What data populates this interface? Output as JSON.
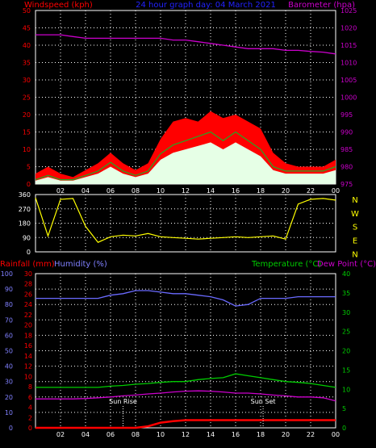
{
  "header": {
    "left_label": "Windspeed (kph)",
    "center_label": "24 hour graph day: 04 March 2021",
    "right_label": "Barometer (hpa)"
  },
  "bottom_header": {
    "rain_label": "Rainfall (mm)",
    "humidity_label": "Humidity (%)",
    "temp_label": "Temperature (°C)",
    "dew_label": "Dew Point (°C)"
  },
  "colors": {
    "rain": "#ff0000",
    "humidity": "#6a6aff",
    "temp": "#00cc00",
    "dew": "#cc00cc",
    "pressure": "#cc00cc",
    "gust": "#ff0000",
    "avg_wind": "#22aa22",
    "wind_fill": "#e6ffe6",
    "direction": "#ffff00",
    "axis_left": "#ff0000",
    "axis_right": "#cc00cc",
    "axis_green": "#00cc00",
    "axis_blue": "#8080ff",
    "grid": "#ffffff"
  },
  "x_ticks": [
    "02",
    "04",
    "06",
    "08",
    "10",
    "12",
    "14",
    "16",
    "18",
    "20",
    "22",
    "00"
  ],
  "wind_chart": {
    "type": "line",
    "left_ticks": [
      "0",
      "5",
      "10",
      "15",
      "20",
      "25",
      "30",
      "35",
      "40",
      "45",
      "50"
    ],
    "right_ticks": [
      "975",
      "980",
      "985",
      "990",
      "995",
      "1000",
      "1005",
      "1010",
      "1015",
      "1020",
      "1025"
    ],
    "ylim": [
      0,
      50
    ],
    "pressure_ylim": [
      975,
      1025
    ],
    "hours": [
      0,
      1,
      2,
      3,
      4,
      5,
      6,
      7,
      8,
      9,
      10,
      11,
      12,
      13,
      14,
      15,
      16,
      17,
      18,
      19,
      20,
      21,
      22,
      23,
      24
    ],
    "series": [
      {
        "key": "gust",
        "values": [
          3,
          5,
          3,
          2,
          4,
          6,
          9,
          6,
          4,
          6,
          13,
          18,
          19,
          18,
          21,
          19,
          20,
          18,
          16,
          9,
          6,
          5,
          5,
          5,
          7
        ]
      },
      {
        "key": "avg",
        "values": [
          1,
          2,
          1,
          1,
          2,
          3,
          5,
          3,
          2,
          3,
          7,
          9,
          10,
          11,
          12,
          10,
          12,
          10,
          8,
          4,
          3,
          3,
          3,
          3,
          4
        ]
      },
      {
        "key": "pressure",
        "values": [
          1018,
          1018,
          1018,
          1017.5,
          1017,
          1017,
          1017,
          1017,
          1017,
          1017,
          1017,
          1016.5,
          1016.5,
          1016,
          1015.5,
          1015,
          1014.5,
          1014,
          1014,
          1014,
          1013.5,
          1013.5,
          1013.2,
          1013,
          1012.5
        ]
      }
    ]
  },
  "direction_chart": {
    "type": "line",
    "left_ticks": [
      "0",
      "90",
      "180",
      "270",
      "360"
    ],
    "ylim": [
      0,
      360
    ],
    "compass": [
      "N",
      "W",
      "S",
      "E",
      "N"
    ],
    "hours": [
      0,
      1,
      2,
      3,
      4,
      5,
      6,
      7,
      8,
      9,
      10,
      11,
      12,
      13,
      14,
      15,
      16,
      17,
      18,
      19,
      20,
      21,
      22,
      23,
      24
    ],
    "values": [
      340,
      100,
      330,
      335,
      160,
      60,
      95,
      105,
      100,
      115,
      95,
      90,
      85,
      80,
      85,
      90,
      95,
      90,
      95,
      100,
      80,
      300,
      330,
      335,
      325
    ]
  },
  "env_chart": {
    "type": "line",
    "rain_ticks": [
      "0",
      "2",
      "4",
      "6",
      "8",
      "10",
      "12",
      "14",
      "16",
      "18",
      "20",
      "22",
      "24",
      "26",
      "28",
      "30"
    ],
    "humidity_ticks": [
      "0",
      "10",
      "20",
      "30",
      "40",
      "50",
      "60",
      "70",
      "80",
      "90",
      "100"
    ],
    "temp_ticks": [
      "0",
      "5",
      "10",
      "15",
      "20",
      "25",
      "30",
      "35",
      "40"
    ],
    "hours": [
      0,
      1,
      2,
      3,
      4,
      5,
      6,
      7,
      8,
      9,
      10,
      11,
      12,
      13,
      14,
      15,
      16,
      17,
      18,
      19,
      20,
      21,
      22,
      23,
      24
    ],
    "series": [
      {
        "key": "humidity",
        "values": [
          84,
          84,
          84,
          84,
          84,
          84,
          86,
          87,
          89,
          89,
          88,
          87,
          87,
          86,
          85,
          83,
          79,
          80,
          84,
          84,
          84,
          85,
          85,
          85,
          85
        ]
      },
      {
        "key": "temp",
        "values": [
          10.5,
          10.5,
          10.5,
          10.5,
          10.5,
          10.5,
          10.8,
          11,
          11.3,
          11.5,
          11.8,
          12,
          12,
          12.5,
          12.8,
          13,
          14,
          13.5,
          13,
          12.5,
          12,
          11.8,
          11.5,
          11,
          10.5
        ]
      },
      {
        "key": "dew",
        "values": [
          7.5,
          7.5,
          7.5,
          7.5,
          7.6,
          7.8,
          8,
          8.3,
          8.5,
          8.8,
          9,
          9.3,
          9.5,
          9.6,
          9.5,
          9.3,
          9,
          9,
          8.8,
          8.5,
          8.3,
          8,
          8,
          7.8,
          7
        ]
      },
      {
        "key": "rain",
        "values": [
          0,
          0,
          0,
          0,
          0,
          0,
          0,
          0,
          0,
          0.3,
          1,
          1.3,
          1.5,
          1.5,
          1.5,
          1.5,
          1.5,
          1.5,
          1.5,
          1.5,
          1.5,
          1.5,
          1.5,
          1.5,
          1.5
        ]
      }
    ],
    "rain_ylim": [
      0,
      30
    ],
    "humidity_ylim": [
      0,
      100
    ],
    "temp_ylim": [
      0,
      40
    ],
    "sun_rise_label": "Sun Rise",
    "sun_set_label": "Sun Set",
    "sun_rise_hour": 7,
    "sun_set_hour": 18.2
  }
}
